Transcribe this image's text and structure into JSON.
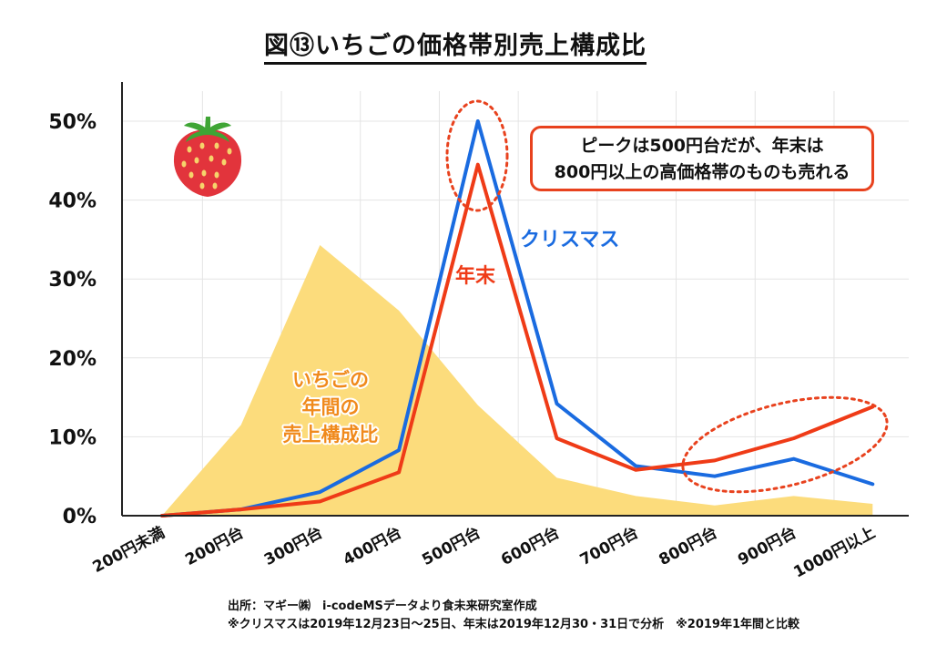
{
  "title": "図⑬いちごの価格帯別売上構成比",
  "callout": {
    "line1": "ピークは500円台だが、年末は",
    "line2": "800円以上の高価格帯のものも売れる"
  },
  "footnote": {
    "line1": "出所：マギー㈱　i-codeMSデータより食未来研究室作成",
    "line2": "※クリスマスは2019年12月23日～25日、年末は2019年12月30・31日で分析　※2019年1年間と比較"
  },
  "colors": {
    "christmas": "#1a6be0",
    "year_end": "#ef3b17",
    "annual": "#fcdc7c",
    "annual_label": "#f08a1c",
    "highlight": "#e8421e"
  },
  "icon": "strawberry-icon",
  "chart_data": {
    "type": "line",
    "categories": [
      "200円未満",
      "200円台",
      "300円台",
      "400円台",
      "500円台",
      "600円台",
      "700円台",
      "800円台",
      "900円台",
      "1000円以上"
    ],
    "ylim": [
      0,
      50
    ],
    "yticks": [
      "0%",
      "10%",
      "20%",
      "30%",
      "40%",
      "50%"
    ],
    "grid": true,
    "series": [
      {
        "name": "クリスマス",
        "type": "line",
        "values": [
          0,
          0.8,
          3,
          8.3,
          50,
          14.2,
          6.3,
          5,
          7.2,
          4
        ]
      },
      {
        "name": "年末",
        "type": "line",
        "values": [
          0,
          0.8,
          1.8,
          5.5,
          44.5,
          9.8,
          5.8,
          7,
          9.8,
          13.8
        ]
      },
      {
        "name": "いちごの年間の売上構成比",
        "name_lines": [
          "いちごの",
          "年間の",
          "売上構成比"
        ],
        "type": "area",
        "values": [
          0,
          11.5,
          34.3,
          26,
          14,
          4.8,
          2.5,
          1.3,
          2.5,
          1.5
        ]
      }
    ]
  }
}
